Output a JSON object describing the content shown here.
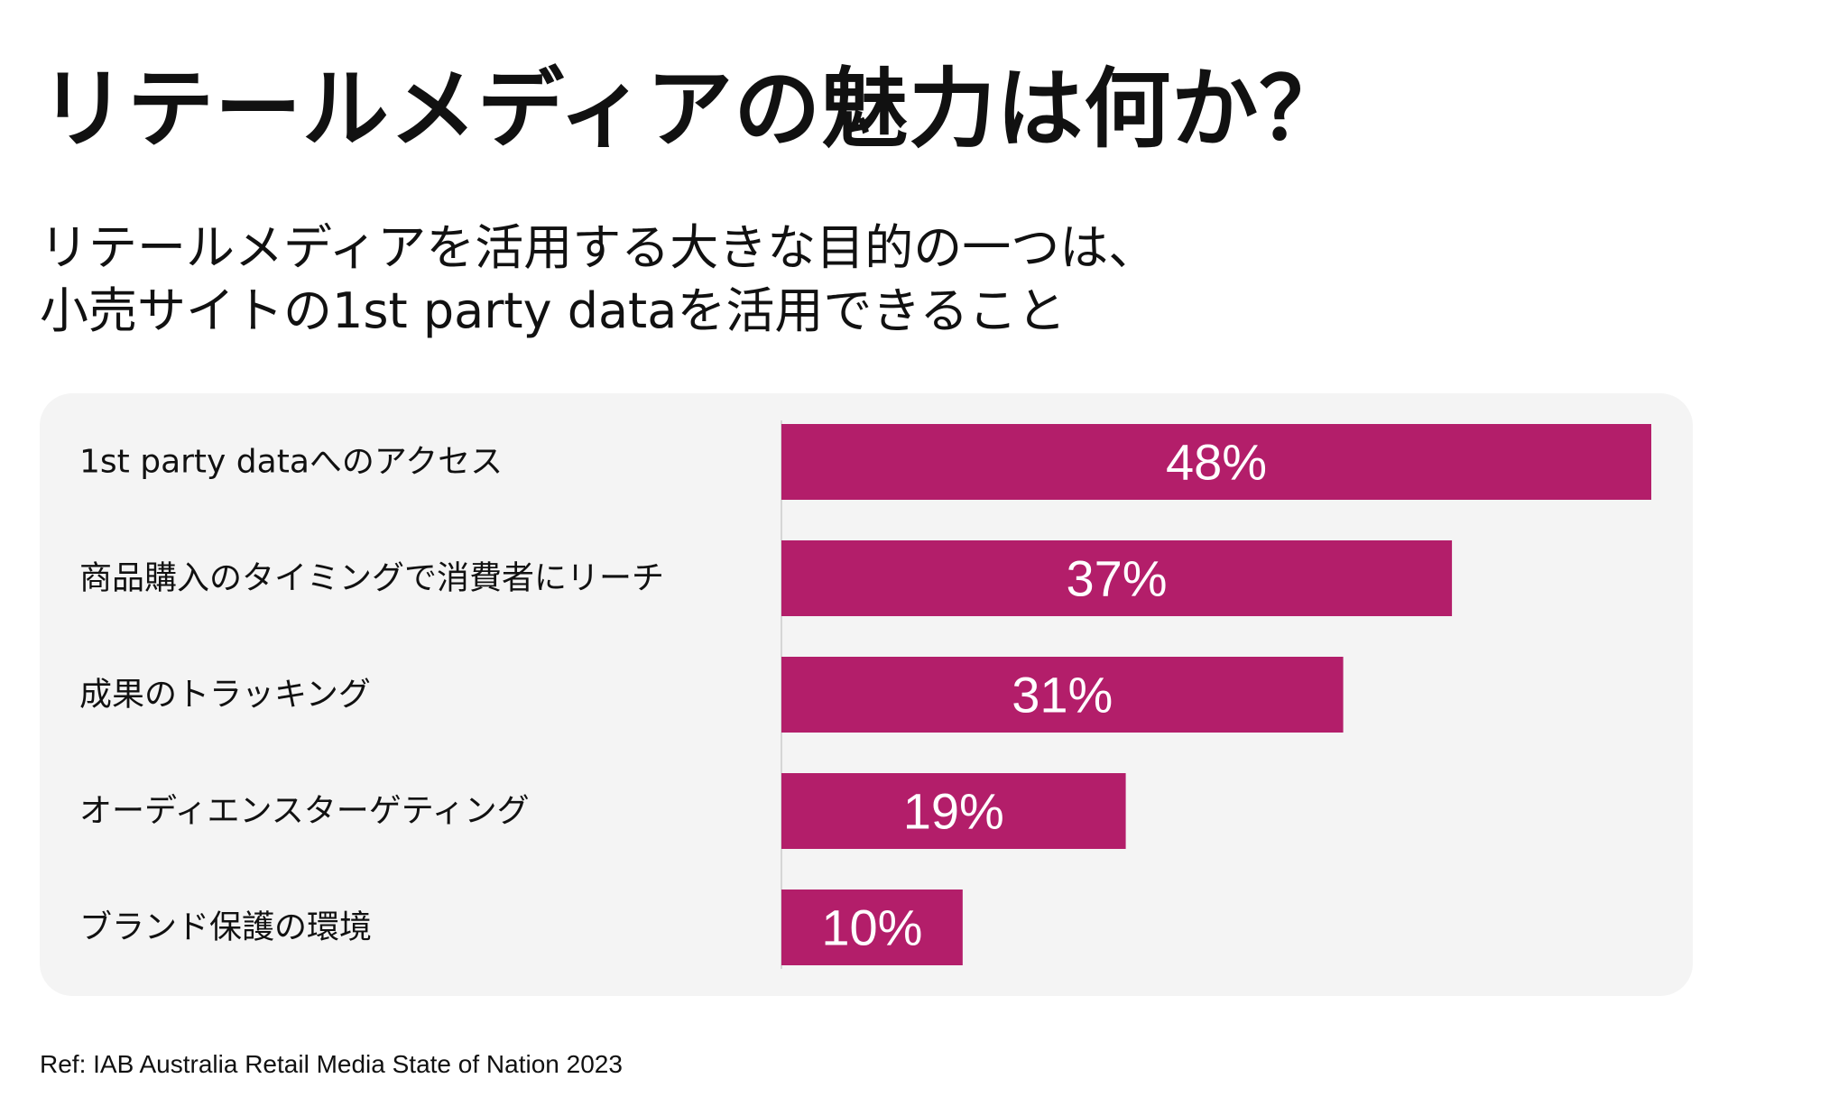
{
  "header": {
    "title": "リテールメディアの魅力は何か？",
    "subtitle_line1": "リテールメディアを活用する大きな目的の一つは、",
    "subtitle_line2": "小売サイトの1st party dataを活用できること"
  },
  "footer": {
    "reference": "Ref: IAB Australia Retail Media State of Nation 2023"
  },
  "colors": {
    "bar": "#b31e6a",
    "panel": "#f4f4f4",
    "bar_label": "#ffffff"
  },
  "chart_data": {
    "type": "bar",
    "orientation": "horizontal",
    "categories": [
      "1st party dataへのアクセス",
      "商品購入のタイミングで消費者にリーチ",
      "成果のトラッキング",
      "オーディエンスターゲティング",
      "ブランド保護の環境"
    ],
    "values": [
      48,
      37,
      31,
      19,
      10
    ],
    "value_labels": [
      "48%",
      "37%",
      "31%",
      "19%",
      "10%"
    ],
    "unit": "%",
    "xlim": [
      0,
      48
    ],
    "grid": false,
    "legend": "none"
  }
}
